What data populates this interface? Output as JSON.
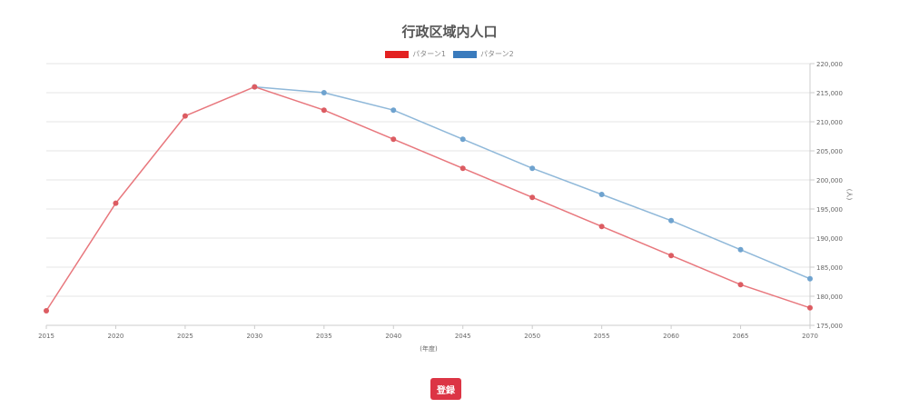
{
  "chart_data": {
    "type": "line",
    "title": "行政区域内人口",
    "xlabel": "(年度)",
    "ylabel": "(人)",
    "x": [
      2015,
      2020,
      2025,
      2030,
      2035,
      2040,
      2045,
      2050,
      2055,
      2060,
      2065,
      2070
    ],
    "x_tick_labels": [
      "2015",
      "2020",
      "2025",
      "2030",
      "2035",
      "2040",
      "2045",
      "2050",
      "2055",
      "2060",
      "2065",
      "2070"
    ],
    "ylim": [
      175000,
      220000
    ],
    "y_ticks": [
      175000,
      180000,
      185000,
      190000,
      195000,
      200000,
      205000,
      210000,
      215000,
      220000
    ],
    "y_tick_labels": [
      "175,000",
      "180,000",
      "185,000",
      "190,000",
      "195,000",
      "200,000",
      "205,000",
      "210,000",
      "215,000",
      "220,000"
    ],
    "y_axis_position": "right",
    "grid": true,
    "legend_position": "top-center",
    "series": [
      {
        "name": "パターン1",
        "color": "#e8777d",
        "point_color": "#dc5c62",
        "legend_color": "#e32121",
        "values": [
          177500,
          196000,
          211000,
          216000,
          212000,
          207000,
          202000,
          197000,
          192000,
          187000,
          182000,
          178000
        ]
      },
      {
        "name": "パターン2",
        "color": "#8fb8d9",
        "point_color": "#6fa3cf",
        "legend_color": "#3a7bbd",
        "values": [
          null,
          null,
          null,
          216000,
          215000,
          212000,
          207000,
          202000,
          197500,
          193000,
          188000,
          183000
        ]
      }
    ]
  },
  "buttons": {
    "register_label": "登録"
  }
}
